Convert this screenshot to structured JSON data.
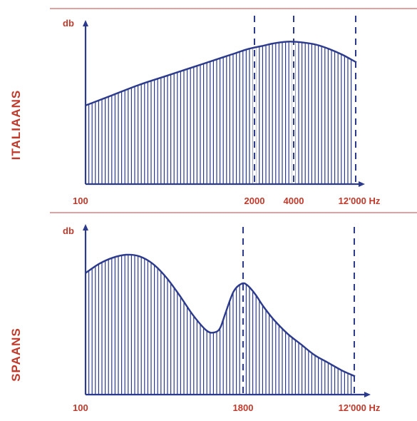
{
  "colors": {
    "line": "#2b3a8c",
    "label": "#c0392b",
    "rule": "#d98080",
    "background": "#ffffff"
  },
  "chart_data": [
    {
      "type": "area",
      "side_label": "ITALIAANS",
      "ylabel": "db",
      "xlabel": "",
      "x_ticks": [
        "100",
        "2000",
        "4000",
        "12'000 Hz"
      ],
      "markers": [
        "2000",
        "4000",
        "12'000"
      ],
      "ylim": [
        0,
        100
      ],
      "series": [
        {
          "x": [
            0,
            10,
            20,
            30,
            40,
            50,
            55,
            60,
            65,
            70,
            75,
            80,
            85,
            90,
            95,
            100
          ],
          "values": [
            53,
            60,
            67,
            73,
            79,
            85,
            88,
            91,
            93,
            95,
            96,
            95.5,
            94,
            91,
            87,
            82
          ]
        }
      ]
    },
    {
      "type": "area",
      "side_label": "SPAANS",
      "ylabel": "db",
      "xlabel": "",
      "x_ticks": [
        "100",
        "1800",
        "12'000 Hz"
      ],
      "markers": [
        "1800",
        "12'000"
      ],
      "ylim": [
        0,
        100
      ],
      "series": [
        {
          "x": [
            0,
            5,
            10,
            15,
            20,
            25,
            30,
            35,
            40,
            45,
            48,
            50,
            52,
            55,
            58,
            60,
            63,
            66,
            70,
            75,
            80,
            85,
            90,
            95,
            100
          ],
          "values": [
            80,
            86,
            90,
            92,
            91,
            86,
            77,
            65,
            52,
            42,
            41,
            44,
            54,
            68,
            73,
            72,
            66,
            58,
            49,
            40,
            33,
            26,
            21,
            16,
            12
          ]
        }
      ]
    }
  ]
}
